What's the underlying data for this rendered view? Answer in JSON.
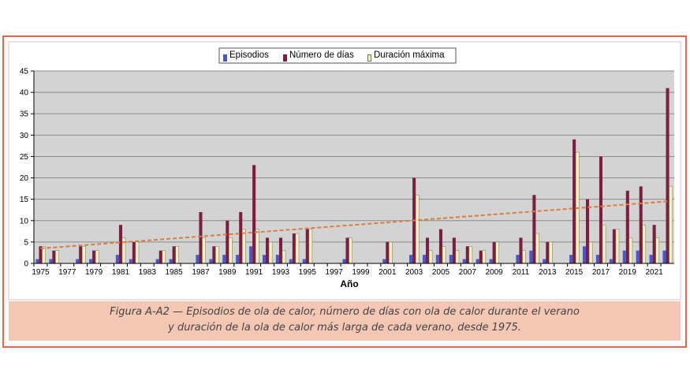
{
  "chart_data": {
    "type": "bar",
    "xlabel": "Año",
    "ylabel": "",
    "ylim": [
      0,
      45
    ],
    "yticks": [
      0,
      5,
      10,
      15,
      20,
      25,
      30,
      35,
      40,
      45
    ],
    "grid": true,
    "legend_position": "top-center",
    "x_tick_labels": [
      "1975",
      "1977",
      "1979",
      "1981",
      "1983",
      "1985",
      "1987",
      "1989",
      "1991",
      "1993",
      "1995",
      "1997",
      "1999",
      "2001",
      "2003",
      "2005",
      "2007",
      "2009",
      "2011",
      "2013",
      "2015",
      "2017",
      "2019",
      "2021"
    ],
    "categories": [
      1975,
      1976,
      1977,
      1978,
      1979,
      1980,
      1981,
      1982,
      1983,
      1984,
      1985,
      1986,
      1987,
      1988,
      1989,
      1990,
      1991,
      1992,
      1993,
      1994,
      1995,
      1996,
      1997,
      1998,
      1999,
      2000,
      2001,
      2002,
      2003,
      2004,
      2005,
      2006,
      2007,
      2008,
      2009,
      2010,
      2011,
      2012,
      2013,
      2014,
      2015,
      2016,
      2017,
      2018,
      2019,
      2020,
      2021,
      2022
    ],
    "series": [
      {
        "name": "Episodios",
        "color": "#4a57c8",
        "values": [
          1,
          1,
          0,
          1,
          1,
          0,
          2,
          1,
          0,
          1,
          1,
          0,
          2,
          1,
          2,
          2,
          4,
          2,
          2,
          1,
          1,
          0,
          0,
          1,
          0,
          0,
          1,
          0,
          2,
          2,
          2,
          2,
          1,
          1,
          1,
          0,
          2,
          3,
          1,
          0,
          2,
          4,
          2,
          1,
          3,
          3,
          2,
          3
        ]
      },
      {
        "name": "Número de días",
        "color": "#7a1f3e",
        "values": [
          4,
          3,
          0,
          4,
          3,
          0,
          9,
          5,
          0,
          3,
          4,
          0,
          12,
          4,
          10,
          12,
          23,
          6,
          6,
          7,
          8,
          0,
          0,
          6,
          0,
          0,
          5,
          0,
          20,
          6,
          8,
          6,
          4,
          3,
          5,
          0,
          6,
          16,
          5,
          0,
          29,
          15,
          25,
          8,
          17,
          18,
          9,
          41
        ]
      },
      {
        "name": "Duración máxima",
        "color": "#f3efc8",
        "values": [
          4,
          3,
          0,
          4,
          3,
          0,
          6,
          5,
          0,
          3,
          4,
          0,
          6,
          4,
          6,
          8,
          8,
          5,
          3,
          7,
          8,
          0,
          0,
          6,
          0,
          0,
          5,
          0,
          16,
          3,
          4,
          3,
          4,
          3,
          5,
          0,
          3,
          7,
          5,
          0,
          26,
          5,
          9,
          8,
          6,
          9,
          6,
          18
        ]
      }
    ],
    "trendline": {
      "style": "dashed",
      "color": "#e07a3a",
      "start": [
        1975,
        3.5
      ],
      "end": [
        2022,
        14.5
      ]
    }
  },
  "caption": {
    "line1": "Figura A-A2 — Episodios de ola de calor, número de días con ola de calor durante el verano",
    "line2": "y duración de la ola de calor más larga de cada verano, desde 1975."
  }
}
